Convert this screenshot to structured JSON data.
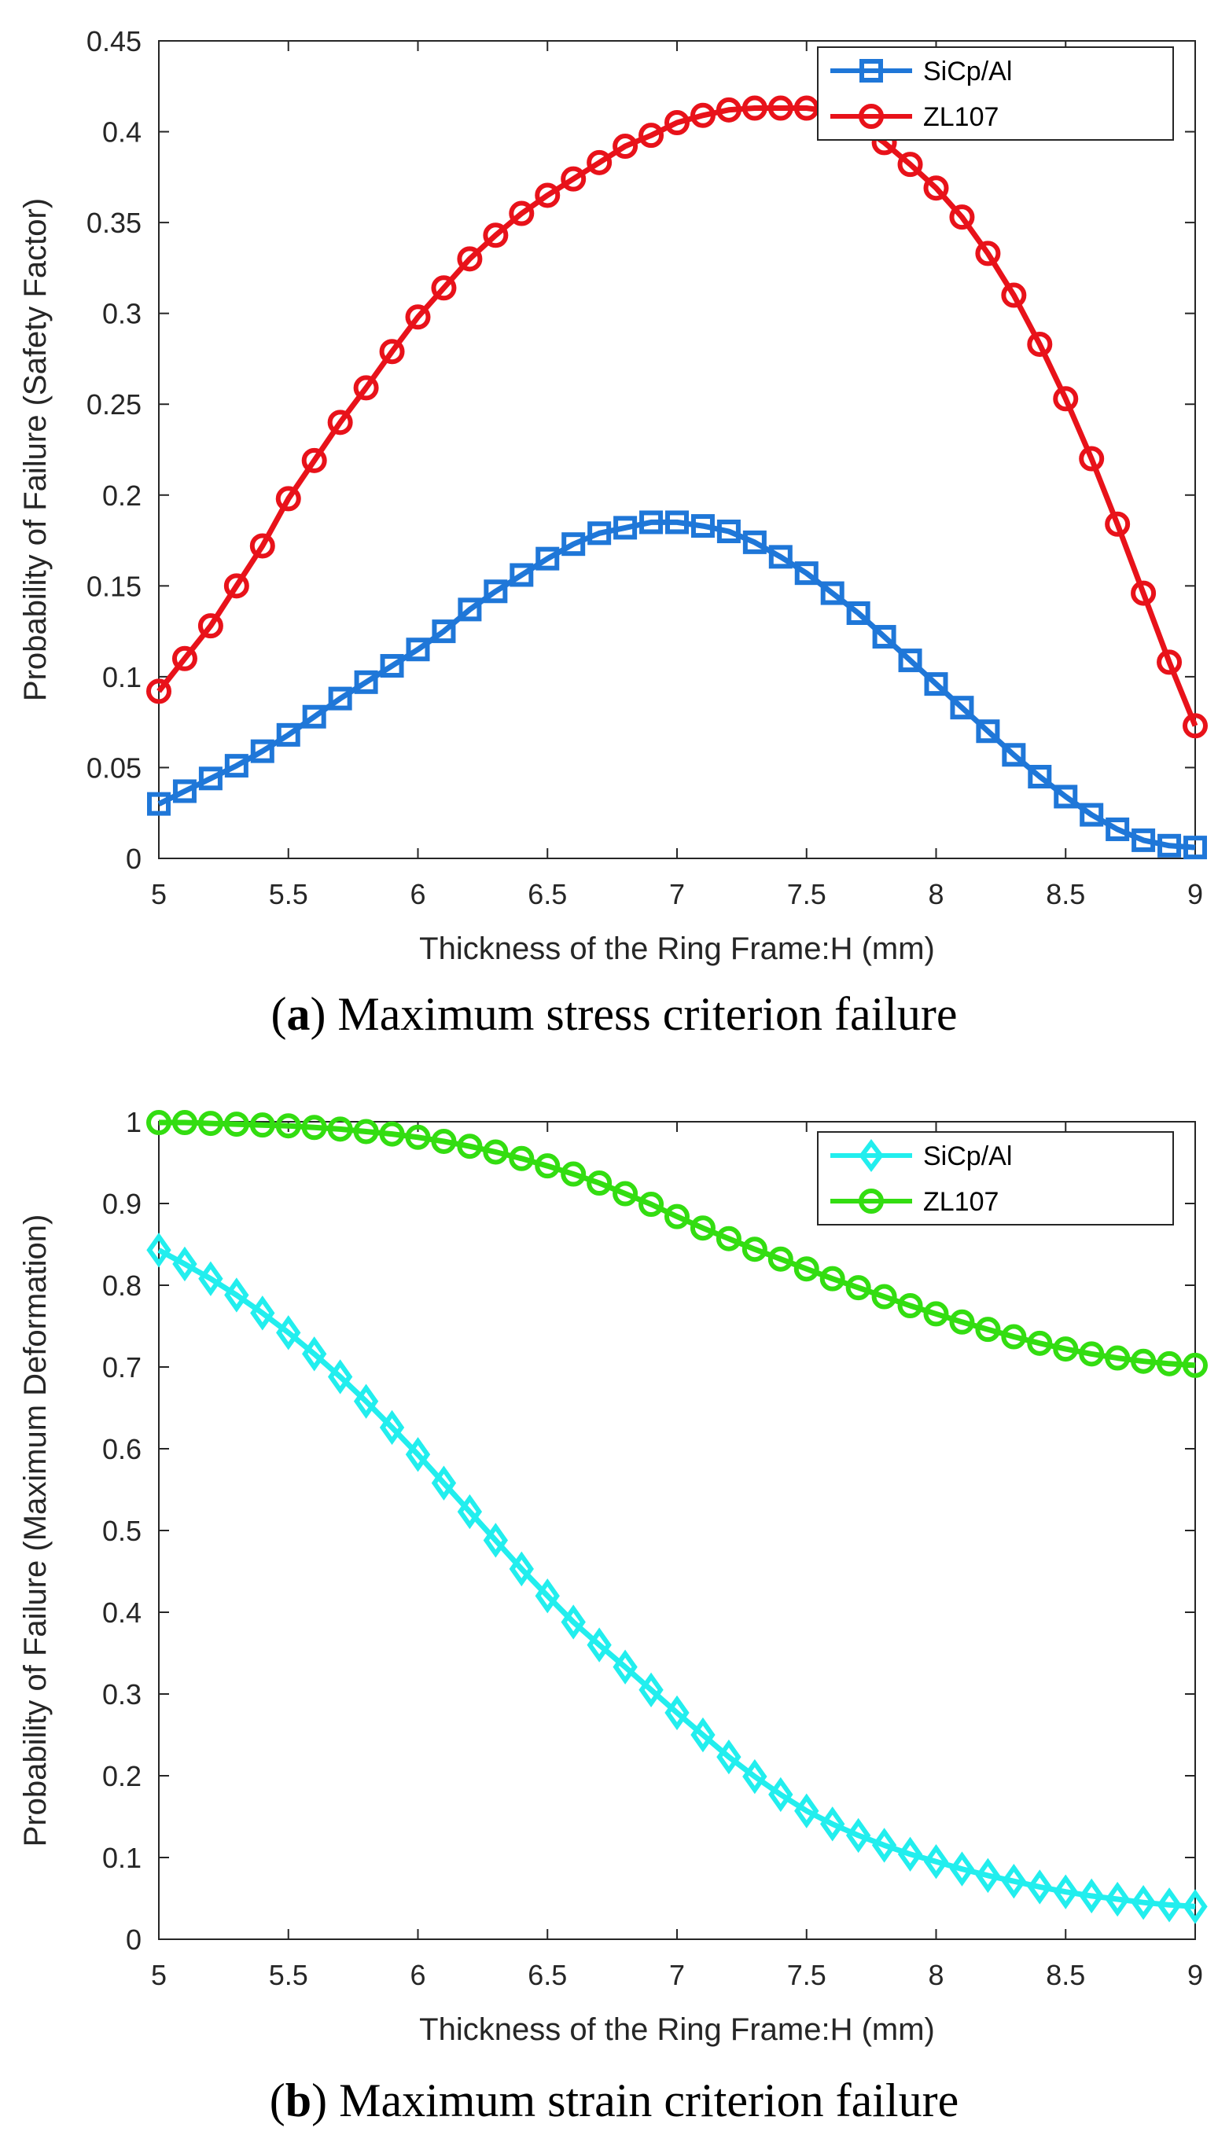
{
  "chart_data": [
    {
      "type": "line",
      "caption": {
        "open": "(",
        "letter": "a",
        "close": ")",
        "text": " Maximum stress criterion failure"
      },
      "xlabel": "Thickness of the Ring Frame:H (mm)",
      "ylabel": "Probability of Failure (Safety Factor)",
      "xlim": [
        5,
        9
      ],
      "ylim": [
        0,
        0.45
      ],
      "xticks": [
        "5",
        "5.5",
        "6",
        "6.5",
        "7",
        "7.5",
        "8",
        "8.5",
        "9"
      ],
      "yticks": [
        "0",
        "0.05",
        "0.1",
        "0.15",
        "0.2",
        "0.25",
        "0.3",
        "0.35",
        "0.4",
        "0.45"
      ],
      "grid": false,
      "legend_position": "top-right",
      "x": [
        5.0,
        5.1,
        5.2,
        5.3,
        5.4,
        5.5,
        5.6,
        5.7,
        5.8,
        5.9,
        6.0,
        6.1,
        6.2,
        6.3,
        6.4,
        6.5,
        6.6,
        6.7,
        6.8,
        6.9,
        7.0,
        7.1,
        7.2,
        7.3,
        7.4,
        7.5,
        7.6,
        7.7,
        7.8,
        7.9,
        8.0,
        8.1,
        8.2,
        8.3,
        8.4,
        8.5,
        8.6,
        8.7,
        8.8,
        8.9,
        9.0
      ],
      "series": [
        {
          "name": "SiCp/Al",
          "color": "#1f77d8",
          "marker": "square",
          "values": [
            0.03,
            0.037,
            0.044,
            0.051,
            0.059,
            0.068,
            0.078,
            0.088,
            0.097,
            0.106,
            0.115,
            0.125,
            0.137,
            0.147,
            0.156,
            0.165,
            0.173,
            0.179,
            0.182,
            0.185,
            0.185,
            0.183,
            0.18,
            0.174,
            0.166,
            0.157,
            0.146,
            0.135,
            0.122,
            0.109,
            0.096,
            0.083,
            0.07,
            0.057,
            0.045,
            0.034,
            0.024,
            0.016,
            0.01,
            0.007,
            0.006
          ]
        },
        {
          "name": "ZL107",
          "color": "#e8121a",
          "marker": "circle",
          "values": [
            0.092,
            0.11,
            0.128,
            0.15,
            0.172,
            0.198,
            0.219,
            0.24,
            0.259,
            0.279,
            0.298,
            0.314,
            0.33,
            0.343,
            0.355,
            0.365,
            0.374,
            0.383,
            0.392,
            0.398,
            0.405,
            0.409,
            0.412,
            0.413,
            0.413,
            0.413,
            0.411,
            0.404,
            0.394,
            0.382,
            0.369,
            0.353,
            0.333,
            0.31,
            0.283,
            0.253,
            0.22,
            0.184,
            0.146,
            0.108,
            0.073
          ]
        }
      ]
    },
    {
      "type": "line",
      "caption": {
        "open": "(",
        "letter": "b",
        "close": ")",
        "text": " Maximum strain criterion failure"
      },
      "xlabel": "Thickness of the Ring Frame:H (mm)",
      "ylabel": "Probability of Failure (Maximum Deformation)",
      "xlim": [
        5,
        9
      ],
      "ylim": [
        0,
        1
      ],
      "xticks": [
        "5",
        "5.5",
        "6",
        "6.5",
        "7",
        "7.5",
        "8",
        "8.5",
        "9"
      ],
      "yticks": [
        "0",
        "0.1",
        "0.2",
        "0.3",
        "0.4",
        "0.5",
        "0.6",
        "0.7",
        "0.8",
        "0.9",
        "1"
      ],
      "grid": false,
      "legend_position": "top-right",
      "x": [
        5.0,
        5.1,
        5.2,
        5.3,
        5.4,
        5.5,
        5.6,
        5.7,
        5.8,
        5.9,
        6.0,
        6.1,
        6.2,
        6.3,
        6.4,
        6.5,
        6.6,
        6.7,
        6.8,
        6.9,
        7.0,
        7.1,
        7.2,
        7.3,
        7.4,
        7.5,
        7.6,
        7.7,
        7.8,
        7.9,
        8.0,
        8.1,
        8.2,
        8.3,
        8.4,
        8.5,
        8.6,
        8.7,
        8.8,
        8.9,
        9.0
      ],
      "series": [
        {
          "name": "SiCp/Al",
          "color": "#22eeee",
          "marker": "diamond",
          "values": [
            0.843,
            0.826,
            0.808,
            0.788,
            0.766,
            0.742,
            0.716,
            0.688,
            0.658,
            0.626,
            0.593,
            0.558,
            0.523,
            0.488,
            0.453,
            0.42,
            0.388,
            0.36,
            0.333,
            0.305,
            0.277,
            0.25,
            0.223,
            0.199,
            0.177,
            0.157,
            0.141,
            0.127,
            0.115,
            0.104,
            0.095,
            0.086,
            0.078,
            0.071,
            0.064,
            0.058,
            0.053,
            0.049,
            0.045,
            0.042,
            0.04
          ]
        },
        {
          "name": "ZL107",
          "color": "#33dd11",
          "marker": "circle",
          "values": [
            0.999,
            0.999,
            0.998,
            0.997,
            0.996,
            0.995,
            0.993,
            0.991,
            0.988,
            0.985,
            0.981,
            0.976,
            0.97,
            0.963,
            0.955,
            0.946,
            0.936,
            0.925,
            0.912,
            0.899,
            0.884,
            0.87,
            0.857,
            0.844,
            0.832,
            0.82,
            0.808,
            0.797,
            0.786,
            0.775,
            0.765,
            0.755,
            0.746,
            0.737,
            0.729,
            0.722,
            0.716,
            0.711,
            0.707,
            0.704,
            0.702
          ]
        }
      ]
    }
  ]
}
